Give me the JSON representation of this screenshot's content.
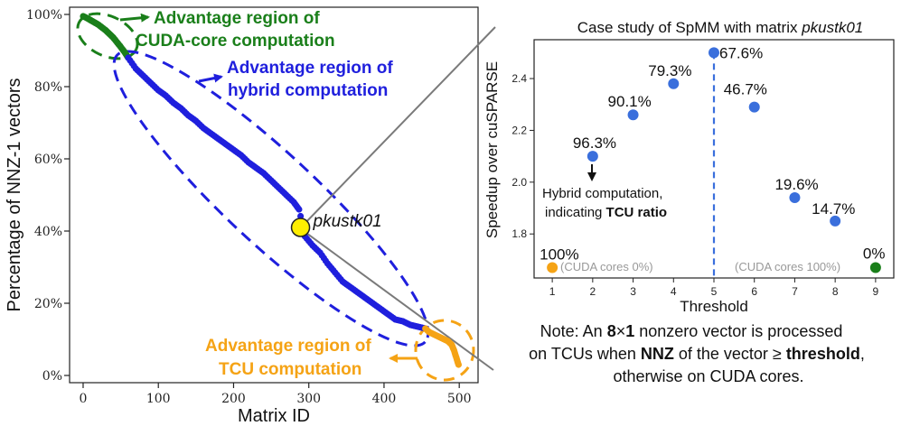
{
  "chart_data": [
    {
      "type": "scatter",
      "xlabel": "Matrix ID",
      "ylabel": "Percentage of NNZ-1 vectors",
      "xlim": [
        -18,
        525
      ],
      "ylim": [
        -2,
        102
      ],
      "xticks": [
        "0",
        "100",
        "200",
        "300",
        "400",
        "500"
      ],
      "yticks": [
        "0%",
        "20%",
        "40%",
        "60%",
        "80%",
        "100%"
      ],
      "grid": false,
      "series": [
        {
          "name": "CUDA-core",
          "color": "#1a7f1a",
          "x": [
            0,
            5,
            10,
            15,
            20,
            25,
            30,
            35,
            40,
            45,
            50,
            55,
            60
          ],
          "y": [
            99.5,
            99,
            98.4,
            97.8,
            97.2,
            96.4,
            95.6,
            94.6,
            93.6,
            92.3,
            91,
            89.6,
            88
          ]
        },
        {
          "name": "hybrid",
          "color": "#1f1fdd",
          "x": [
            60,
            70,
            80,
            90,
            100,
            110,
            120,
            130,
            140,
            150,
            160,
            170,
            180,
            190,
            200,
            210,
            220,
            230,
            240,
            250,
            260,
            270,
            280,
            287,
            295,
            305,
            315,
            325,
            335,
            345,
            355,
            365,
            375,
            385,
            395,
            405,
            415,
            425,
            435,
            445,
            455
          ],
          "y": [
            88,
            85,
            83,
            81,
            79,
            77.5,
            75.5,
            74,
            72,
            70.5,
            68.5,
            67,
            65.5,
            64,
            62.5,
            61,
            59,
            57.5,
            56,
            54,
            52,
            50,
            48,
            46,
            38.5,
            36,
            34,
            31,
            28.5,
            26,
            24.5,
            23,
            21.5,
            20,
            18.5,
            17,
            15.5,
            15,
            14,
            13.5,
            13
          ]
        },
        {
          "name": "TCU",
          "color": "#f5a315",
          "x": [
            455,
            460,
            465,
            470,
            475,
            480,
            485,
            490,
            493,
            496,
            499
          ],
          "y": [
            13,
            12,
            11.5,
            11,
            10.5,
            10,
            9.5,
            8.5,
            7,
            5,
            3
          ]
        }
      ],
      "highlight": {
        "label": "pkustk01",
        "x": 289,
        "y": 41
      },
      "annotations": {
        "cuda": [
          "Advantage region of",
          "CUDA-core computation"
        ],
        "hybrid": [
          "Advantage region of",
          "hybrid computation"
        ],
        "tcu": [
          "Advantage region of",
          "TCU computation"
        ]
      }
    },
    {
      "type": "scatter",
      "title": "Case study of SpMM with matrix pkustk01",
      "title_prefix": "Case study of SpMM with matrix ",
      "title_italic": "pkustk01",
      "xlabel": "Threshold",
      "ylabel": "Speedup over cuSPARSE",
      "xlim": [
        0.55,
        9.45
      ],
      "ylim": [
        1.63,
        2.55
      ],
      "xticks": [
        "1",
        "2",
        "3",
        "4",
        "5",
        "6",
        "7",
        "8",
        "9"
      ],
      "yticks": [
        "1.8",
        "2.0",
        "2.2",
        "2.4"
      ],
      "grid": false,
      "points": [
        {
          "x": 1,
          "y": 1.67,
          "label": "100%",
          "color": "#f5a315"
        },
        {
          "x": 2,
          "y": 2.1,
          "label": "96.3%",
          "color": "#3a6fdc"
        },
        {
          "x": 3,
          "y": 2.26,
          "label": "90.1%",
          "color": "#3a6fdc"
        },
        {
          "x": 4,
          "y": 2.38,
          "label": "79.3%",
          "color": "#3a6fdc"
        },
        {
          "x": 5,
          "y": 2.5,
          "label": "67.6%",
          "color": "#3a6fdc"
        },
        {
          "x": 6,
          "y": 2.29,
          "label": "46.7%",
          "color": "#3a6fdc"
        },
        {
          "x": 7,
          "y": 1.94,
          "label": "19.6%",
          "color": "#3a6fdc"
        },
        {
          "x": 8,
          "y": 1.85,
          "label": "14.7%",
          "color": "#3a6fdc"
        },
        {
          "x": 9,
          "y": 1.67,
          "label": "0%",
          "color": "#1a7f1a"
        }
      ],
      "vline": {
        "x": 5,
        "color": "#3a6fdc"
      },
      "footnotes": {
        "left": "(CUDA cores 0%)",
        "right": "(CUDA cores 100%)"
      },
      "callout": {
        "line1": "Hybrid computation,",
        "line2_prefix": "indicating ",
        "line2_bold": "TCU ratio"
      }
    }
  ],
  "note": {
    "line1_a": "Note: An ",
    "line1_b": "8",
    "line1_c": "×",
    "line1_d": "1",
    "line1_e": " nonzero vector is processed",
    "line2_a": "on TCUs when ",
    "line2_b": "NNZ",
    "line2_c": " of the vector ≥ ",
    "line2_d": "threshold",
    "line2_e": ",",
    "line3": "otherwise on CUDA cores."
  },
  "colors": {
    "green": "#1a7f1a",
    "blue": "#1f1fdd",
    "orange": "#f5a315",
    "lightblue": "#3a6fdc",
    "yellow": "#ffee00"
  }
}
